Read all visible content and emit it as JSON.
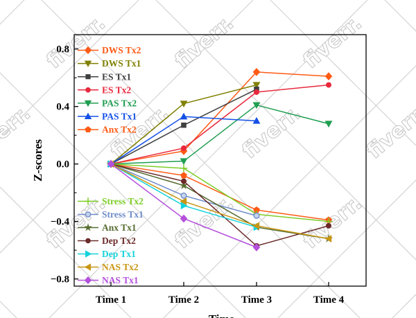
{
  "watermark": {
    "text": "fiverr."
  },
  "chart_data": {
    "type": "line",
    "title": "",
    "xlabel": "Time",
    "ylabel": "Z-scores",
    "categories": [
      "Time 1",
      "Time 2",
      "Time 3",
      "Time 4"
    ],
    "ylim": [
      -0.85,
      0.9
    ],
    "yticks": [
      -0.8,
      -0.4,
      0.0,
      0.4,
      0.8
    ],
    "ytick_labels": [
      "−0.8",
      "−0.4",
      "0.0",
      "0.4",
      "0.8"
    ],
    "grid": false,
    "legend_placement": [
      "upper-left",
      "lower-left"
    ],
    "series": [
      {
        "name": "DWS Tx2",
        "color": "#ff5a14",
        "marker": "diamond",
        "values": [
          0,
          0.09,
          0.64,
          0.61
        ]
      },
      {
        "name": "DWS Tx1",
        "color": "#808000",
        "marker": "triangle-down",
        "values": [
          0,
          0.42,
          0.55,
          null
        ]
      },
      {
        "name": "ES Tx1",
        "color": "#404040",
        "marker": "square",
        "values": [
          0,
          0.27,
          0.52,
          null
        ]
      },
      {
        "name": "ES Tx2",
        "color": "#e8283c",
        "marker": "circle",
        "values": [
          0,
          0.11,
          0.5,
          0.55
        ]
      },
      {
        "name": "PAS Tx2",
        "color": "#1e9e50",
        "marker": "triangle-down",
        "values": [
          0,
          0.02,
          0.41,
          0.28
        ]
      },
      {
        "name": "PAS Tx1",
        "color": "#1450e6",
        "marker": "triangle-up",
        "values": [
          0,
          0.33,
          0.3,
          null
        ]
      },
      {
        "name": "Anx Tx2",
        "color": "#ff5a14",
        "marker": "pentagon",
        "values": [
          0,
          -0.08,
          -0.32,
          -0.39
        ]
      },
      {
        "name": "Stress Tx2",
        "color": "#7ccd28",
        "marker": "plus",
        "values": [
          0,
          -0.03,
          -0.35,
          -0.4
        ]
      },
      {
        "name": "Stress Tx1",
        "color": "#6e8cc8",
        "marker": "circle-open",
        "values": [
          0,
          -0.22,
          -0.36,
          null
        ]
      },
      {
        "name": "Anx Tx1",
        "color": "#556b2f",
        "marker": "star",
        "values": [
          0,
          -0.15,
          -0.44,
          -0.52
        ]
      },
      {
        "name": "Dep Tx2",
        "color": "#6b2a2a",
        "marker": "circle",
        "values": [
          0,
          -0.12,
          -0.57,
          -0.43
        ]
      },
      {
        "name": "Dep Tx1",
        "color": "#14d2dc",
        "marker": "triangle-right",
        "values": [
          0,
          -0.29,
          -0.44,
          null
        ]
      },
      {
        "name": "NAS Tx2",
        "color": "#c89614",
        "marker": "triangle-left",
        "values": [
          0,
          -0.26,
          -0.43,
          -0.52
        ]
      },
      {
        "name": "NAS Tx1",
        "color": "#b450dc",
        "marker": "diamond",
        "values": [
          0,
          -0.38,
          -0.58,
          null
        ]
      }
    ]
  }
}
